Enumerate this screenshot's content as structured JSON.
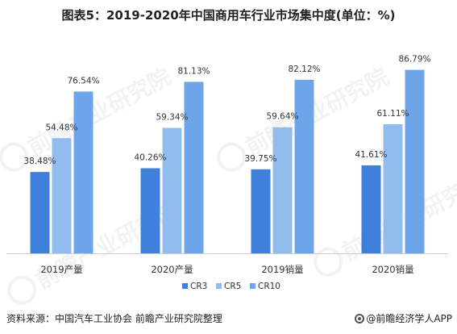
{
  "title": "图表5：2019-2020年中国商用车行业市场集中度(单位：%)",
  "footer": {
    "source": "资料来源：中国汽车工业协会 前瞻产业研究院整理",
    "brand": "@前瞻经济学人APP"
  },
  "watermark": {
    "text": "前瞻产业研究院",
    "icon": "leaf-logo-icon"
  },
  "colors": {
    "CR3": "#3f80dc",
    "CR5": "#91bcee",
    "CR10": "#6ea5ea",
    "axis": "#cccccc"
  },
  "chart_data": {
    "type": "bar",
    "categories": [
      "2019产量",
      "2020产量",
      "2019销量",
      "2020销量"
    ],
    "series": [
      {
        "name": "CR3",
        "values": [
          38.48,
          40.26,
          39.75,
          41.61
        ],
        "labels": [
          "38.48%",
          "40.26%",
          "39.75%",
          "41.61%"
        ]
      },
      {
        "name": "CR5",
        "values": [
          54.48,
          59.34,
          59.64,
          61.11
        ],
        "labels": [
          "54.48%",
          "59.34%",
          "59.64%",
          "61.11%"
        ]
      },
      {
        "name": "CR10",
        "values": [
          76.54,
          81.13,
          82.12,
          86.79
        ],
        "labels": [
          "76.54%",
          "81.13%",
          "82.12%",
          "86.79%"
        ]
      }
    ],
    "ylim": [
      0,
      100
    ],
    "grid": false,
    "legend_position": "bottom"
  }
}
